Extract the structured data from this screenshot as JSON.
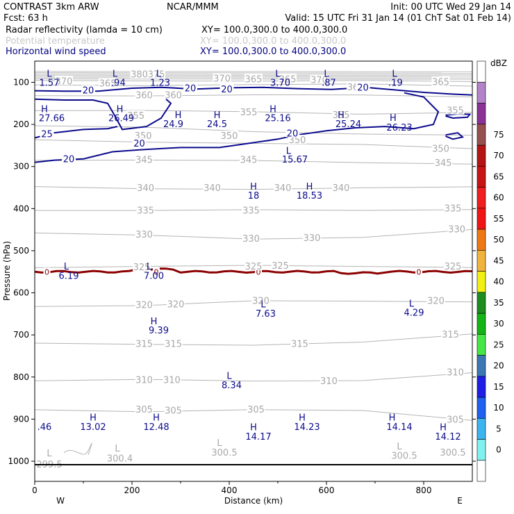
{
  "header": {
    "line1": {
      "left": "CONTRAST  3km ARW",
      "center": "NCAR/MMM",
      "right": "Init: 00 UTC Wed 29 Jan 14"
    },
    "line2": {
      "left": "Fcst:     63 h",
      "right": "Valid: 15 UTC Fri 31 Jan 14 (01 ChT Sat 01 Feb 14)"
    },
    "line3": {
      "left": "Radar reflectivity (lamda = 10 cm)",
      "right": "XY= 100.0,300.0 to 400.0,300.0"
    },
    "line4": {
      "left": "Potential temperature",
      "right": "XY= 100.0,300.0 to 400.0,300.0"
    },
    "line5": {
      "left": "Horizontal wind speed",
      "right": "XY= 100.0,300.0 to 400.0,300.0"
    }
  },
  "colors": {
    "wind": "#0a0a8c",
    "theta": "#b4b4b4",
    "freezing": "#8b0000",
    "frame": "#000000"
  },
  "chart_data": {
    "type": "cross-section contour",
    "xlabel": "Distance (km)",
    "ylabel": "Pressure (hPa)",
    "xlim": [
      0,
      900
    ],
    "ylim": [
      1045,
      50
    ],
    "x_ticks": [
      0,
      200,
      400,
      600,
      800
    ],
    "y_ticks": [
      100,
      200,
      300,
      400,
      500,
      600,
      700,
      800,
      900,
      1000
    ],
    "x_end_labels": {
      "left": "W",
      "right": "E"
    },
    "colorbar": {
      "unit": "dBZ",
      "levels": [
        0,
        5,
        10,
        15,
        20,
        25,
        30,
        35,
        40,
        45,
        50,
        55,
        60,
        65,
        70,
        75
      ],
      "colors": [
        "#ffffff",
        "#80f0f0",
        "#3cb4f0",
        "#2060f0",
        "#1e1ee6",
        "#3c78b4",
        "#46e646",
        "#14b414",
        "#1e8c1e",
        "#f0f014",
        "#f0b43c",
        "#f07814",
        "#f01414",
        "#f01e1e",
        "#c81414",
        "#b41414",
        "#965050",
        "#8c3296",
        "#b482c8",
        "#ffffff"
      ]
    },
    "theta_labels": [
      {
        "x": 60,
        "p": 98,
        "t": "370"
      },
      {
        "x": 150,
        "p": 103,
        "t": "365"
      },
      {
        "x": 215,
        "p": 82,
        "t": "380"
      },
      {
        "x": 250,
        "p": 82,
        "t": "375"
      },
      {
        "x": 385,
        "p": 92,
        "t": "370"
      },
      {
        "x": 450,
        "p": 93,
        "t": "365"
      },
      {
        "x": 520,
        "p": 93,
        "t": "365"
      },
      {
        "x": 585,
        "p": 95,
        "t": "370"
      },
      {
        "x": 660,
        "p": 112,
        "t": "360"
      },
      {
        "x": 835,
        "p": 100,
        "t": "365"
      },
      {
        "x": 225,
        "p": 131,
        "t": "360"
      },
      {
        "x": 285,
        "p": 131,
        "t": "360"
      },
      {
        "x": 208,
        "p": 180,
        "t": "355"
      },
      {
        "x": 440,
        "p": 172,
        "t": "355"
      },
      {
        "x": 630,
        "p": 178,
        "t": "355"
      },
      {
        "x": 865,
        "p": 168,
        "t": "355"
      },
      {
        "x": 223,
        "p": 228,
        "t": "350"
      },
      {
        "x": 400,
        "p": 228,
        "t": "350"
      },
      {
        "x": 540,
        "p": 238,
        "t": "350"
      },
      {
        "x": 835,
        "p": 258,
        "t": "350"
      },
      {
        "x": 225,
        "p": 285,
        "t": "345"
      },
      {
        "x": 440,
        "p": 285,
        "t": "345"
      },
      {
        "x": 840,
        "p": 292,
        "t": "345"
      },
      {
        "x": 228,
        "p": 352,
        "t": "340"
      },
      {
        "x": 365,
        "p": 352,
        "t": "340"
      },
      {
        "x": 510,
        "p": 352,
        "t": "340"
      },
      {
        "x": 630,
        "p": 352,
        "t": "340"
      },
      {
        "x": 228,
        "p": 405,
        "t": "335"
      },
      {
        "x": 445,
        "p": 405,
        "t": "335"
      },
      {
        "x": 860,
        "p": 400,
        "t": "335"
      },
      {
        "x": 868,
        "p": 450,
        "t": "330"
      },
      {
        "x": 225,
        "p": 462,
        "t": "330"
      },
      {
        "x": 445,
        "p": 472,
        "t": "330"
      },
      {
        "x": 570,
        "p": 470,
        "t": "330"
      },
      {
        "x": 220,
        "p": 540,
        "t": "325"
      },
      {
        "x": 450,
        "p": 538,
        "t": "325"
      },
      {
        "x": 505,
        "p": 536,
        "t": "325"
      },
      {
        "x": 860,
        "p": 538,
        "t": "325"
      },
      {
        "x": 225,
        "p": 630,
        "t": "320"
      },
      {
        "x": 290,
        "p": 628,
        "t": "320"
      },
      {
        "x": 465,
        "p": 620,
        "t": "320"
      },
      {
        "x": 825,
        "p": 620,
        "t": "320"
      },
      {
        "x": 225,
        "p": 722,
        "t": "315"
      },
      {
        "x": 285,
        "p": 722,
        "t": "315"
      },
      {
        "x": 545,
        "p": 722,
        "t": "315"
      },
      {
        "x": 855,
        "p": 700,
        "t": "315"
      },
      {
        "x": 225,
        "p": 808,
        "t": "310"
      },
      {
        "x": 282,
        "p": 808,
        "t": "310"
      },
      {
        "x": 605,
        "p": 810,
        "t": "310"
      },
      {
        "x": 865,
        "p": 790,
        "t": "310"
      },
      {
        "x": 225,
        "p": 878,
        "t": "305"
      },
      {
        "x": 285,
        "p": 880,
        "t": "305"
      },
      {
        "x": 455,
        "p": 878,
        "t": "305"
      },
      {
        "x": 865,
        "p": 902,
        "t": "305"
      }
    ],
    "theta_extrema": [
      {
        "x": 30,
        "p": 982,
        "t": "L"
      },
      {
        "x": 30,
        "p": 1008,
        "t": "299.5"
      },
      {
        "x": 170,
        "p": 970,
        "t": "L"
      },
      {
        "x": 175,
        "p": 994,
        "t": "300.4"
      },
      {
        "x": 380,
        "p": 957,
        "t": "L"
      },
      {
        "x": 390,
        "p": 980,
        "t": "300.5"
      },
      {
        "x": 750,
        "p": 965,
        "t": "L"
      },
      {
        "x": 760,
        "p": 988,
        "t": "300.5"
      },
      {
        "x": 860,
        "p": 980,
        "t": "300.5"
      }
    ],
    "wind_contours": [
      {
        "label": "20",
        "label_x": 110,
        "label_p": 120
      },
      {
        "label": "20",
        "label_x": 320,
        "label_p": 115
      },
      {
        "label": "20",
        "label_x": 395,
        "label_p": 117
      },
      {
        "label": "20",
        "label_x": 675,
        "label_p": 113
      },
      {
        "label": "25",
        "label_x": 25,
        "label_p": 224
      },
      {
        "label": "20",
        "label_x": 215,
        "label_p": 246
      },
      {
        "label": "20",
        "label_x": 530,
        "label_p": 222
      },
      {
        "label": "20",
        "label_x": 70,
        "label_p": 283
      }
    ],
    "wind_extrema": [
      {
        "x": 30,
        "p": 80,
        "t": "L"
      },
      {
        "x": 30,
        "p": 102,
        "t": "1.57"
      },
      {
        "x": 165,
        "p": 80,
        "t": "L"
      },
      {
        "x": 172,
        "p": 102,
        "t": ".94"
      },
      {
        "x": 255,
        "p": 80,
        "t": "L"
      },
      {
        "x": 258,
        "p": 102,
        "t": "1.23"
      },
      {
        "x": 500,
        "p": 80,
        "t": "L"
      },
      {
        "x": 505,
        "p": 102,
        "t": "3.70"
      },
      {
        "x": 600,
        "p": 80,
        "t": "L"
      },
      {
        "x": 605,
        "p": 102,
        "t": ".87"
      },
      {
        "x": 740,
        "p": 80,
        "t": "L"
      },
      {
        "x": 742,
        "p": 102,
        "t": ".19"
      },
      {
        "x": 20,
        "p": 164,
        "t": "H"
      },
      {
        "x": 35,
        "p": 186,
        "t": "27.66"
      },
      {
        "x": 175,
        "p": 164,
        "t": "H"
      },
      {
        "x": 178,
        "p": 186,
        "t": "26.49"
      },
      {
        "x": 295,
        "p": 178,
        "t": "H"
      },
      {
        "x": 285,
        "p": 200,
        "t": "24.9"
      },
      {
        "x": 375,
        "p": 178,
        "t": "H"
      },
      {
        "x": 375,
        "p": 200,
        "t": "24.5"
      },
      {
        "x": 490,
        "p": 164,
        "t": "H"
      },
      {
        "x": 500,
        "p": 186,
        "t": "25.16"
      },
      {
        "x": 630,
        "p": 178,
        "t": "H"
      },
      {
        "x": 645,
        "p": 200,
        "t": "25.24"
      },
      {
        "x": 737,
        "p": 185,
        "t": "H"
      },
      {
        "x": 750,
        "p": 208,
        "t": "26.23"
      },
      {
        "x": 522,
        "p": 263,
        "t": "L"
      },
      {
        "x": 535,
        "p": 284,
        "t": "15.67"
      },
      {
        "x": 450,
        "p": 348,
        "t": "H"
      },
      {
        "x": 450,
        "p": 370,
        "t": "18"
      },
      {
        "x": 565,
        "p": 348,
        "t": "H"
      },
      {
        "x": 565,
        "p": 370,
        "t": "18.53"
      },
      {
        "x": 65,
        "p": 538,
        "t": "L"
      },
      {
        "x": 70,
        "p": 560,
        "t": "6.19"
      },
      {
        "x": 235,
        "p": 538,
        "t": "L"
      },
      {
        "x": 245,
        "p": 560,
        "t": "7.00"
      },
      {
        "x": 470,
        "p": 628,
        "t": "L"
      },
      {
        "x": 475,
        "p": 650,
        "t": "7.63"
      },
      {
        "x": 775,
        "p": 626,
        "t": "L"
      },
      {
        "x": 780,
        "p": 648,
        "t": "4.29"
      },
      {
        "x": 245,
        "p": 668,
        "t": "H"
      },
      {
        "x": 255,
        "p": 690,
        "t": "9.39"
      },
      {
        "x": 400,
        "p": 798,
        "t": "L"
      },
      {
        "x": 405,
        "p": 820,
        "t": "8.34"
      },
      {
        "x": 120,
        "p": 897,
        "t": "H"
      },
      {
        "x": 120,
        "p": 919,
        "t": "13.02"
      },
      {
        "x": 250,
        "p": 897,
        "t": "H"
      },
      {
        "x": 250,
        "p": 919,
        "t": "12.48"
      },
      {
        "x": 20,
        "p": 919,
        "t": ".46"
      },
      {
        "x": 450,
        "p": 920,
        "t": "H"
      },
      {
        "x": 460,
        "p": 942,
        "t": "14.17"
      },
      {
        "x": 550,
        "p": 897,
        "t": "H"
      },
      {
        "x": 560,
        "p": 919,
        "t": "14.23"
      },
      {
        "x": 735,
        "p": 897,
        "t": "H"
      },
      {
        "x": 750,
        "p": 919,
        "t": "14.14"
      },
      {
        "x": 840,
        "p": 920,
        "t": "H"
      },
      {
        "x": 850,
        "p": 942,
        "t": "14.12"
      }
    ],
    "freezing_level": {
      "label": "0",
      "p": 550,
      "label_x": [
        25,
        250,
        460,
        790
      ]
    }
  }
}
